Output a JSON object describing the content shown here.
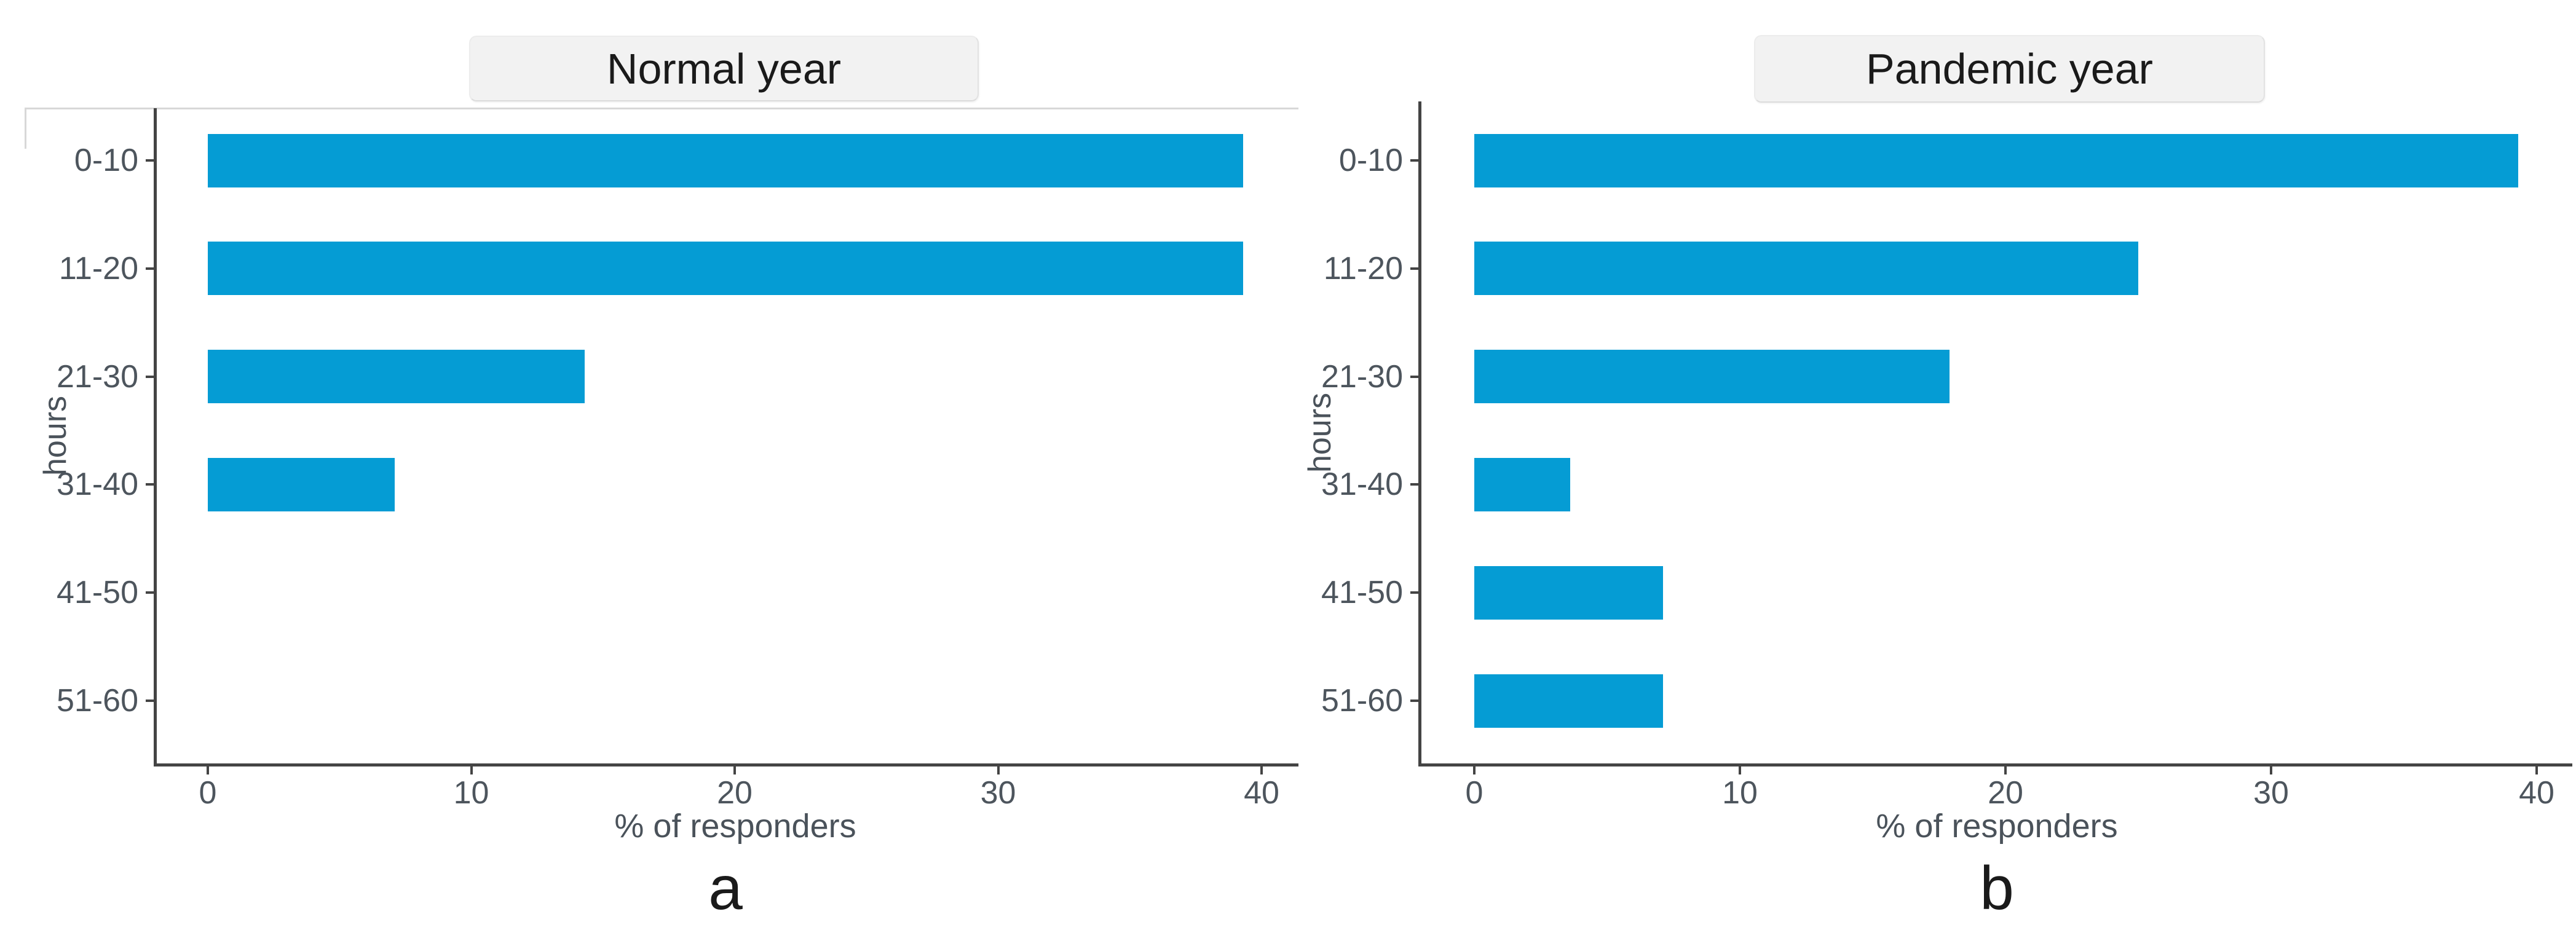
{
  "page": {
    "background": "#ffffff"
  },
  "chart_data": [
    {
      "id": "a",
      "type": "bar",
      "orientation": "horizontal",
      "title": "Normal year",
      "caption": "a",
      "categories": [
        "0-10",
        "11-20",
        "21-30",
        "31-40",
        "41-50",
        "51-60"
      ],
      "values": [
        39.3,
        39.3,
        14.3,
        7.1,
        0,
        0
      ],
      "xlabel": "% of responders",
      "ylabel": "hours",
      "xlim": [
        0,
        40
      ],
      "xticks": [
        0,
        10,
        20,
        30,
        40
      ],
      "grid": false,
      "legend": "none"
    },
    {
      "id": "b",
      "type": "bar",
      "orientation": "horizontal",
      "title": "Pandemic year",
      "caption": "b",
      "categories": [
        "0-10",
        "11-20",
        "21-30",
        "31-40",
        "41-50",
        "51-60"
      ],
      "values": [
        39.3,
        25.0,
        17.9,
        3.6,
        7.1,
        7.1
      ],
      "xlabel": "% of responders",
      "ylabel": "hours",
      "xlim": [
        0,
        40
      ],
      "xticks": [
        0,
        10,
        20,
        30,
        40
      ],
      "grid": false,
      "legend": "none"
    }
  ],
  "style": {
    "bar_color": "#059cd4",
    "axis_color": "#444444",
    "label_color": "#4d555d",
    "strip_fill": "#f2f2f2",
    "title_color": "#1a1a1a",
    "artifact_line_color": "#d8d8d8"
  }
}
